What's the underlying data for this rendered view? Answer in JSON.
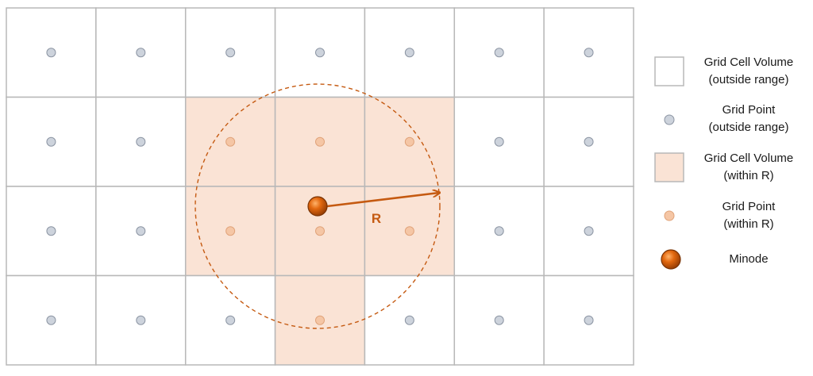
{
  "colors": {
    "grid_line": "#b8b8b8",
    "cell_outside": "#ffffff",
    "cell_within": "#fae3d5",
    "point_outside": "#cdd3dc",
    "point_outside_stroke": "#8c95a3",
    "point_within": "#f5c6a5",
    "point_within_stroke": "#e0a37a",
    "minode": "#d95f0e",
    "minode_dark": "#8a3a05",
    "accent": "#c55a11"
  },
  "grid": {
    "cols": 7,
    "rows": 4,
    "within_cells": [
      [
        1,
        2
      ],
      [
        1,
        3
      ],
      [
        1,
        4
      ],
      [
        2,
        2
      ],
      [
        2,
        3
      ],
      [
        2,
        4
      ],
      [
        3,
        3
      ]
    ]
  },
  "diagram": {
    "radius_label": "R"
  },
  "legend": {
    "items": [
      {
        "key": "cell_outside",
        "line1": "Grid Cell Volume",
        "line2": "(outside range)",
        "symbol": "cell-outside"
      },
      {
        "key": "point_outside",
        "line1": "Grid Point",
        "line2": "(outside range)",
        "symbol": "point-outside"
      },
      {
        "key": "cell_within",
        "line1": "Grid Cell Volume",
        "line2": "(within R)",
        "symbol": "cell-within"
      },
      {
        "key": "point_within",
        "line1": "Grid Point",
        "line2": "(within R)",
        "symbol": "point-within"
      },
      {
        "key": "minode",
        "line1": "Minode",
        "line2": "",
        "symbol": "minode"
      }
    ]
  }
}
